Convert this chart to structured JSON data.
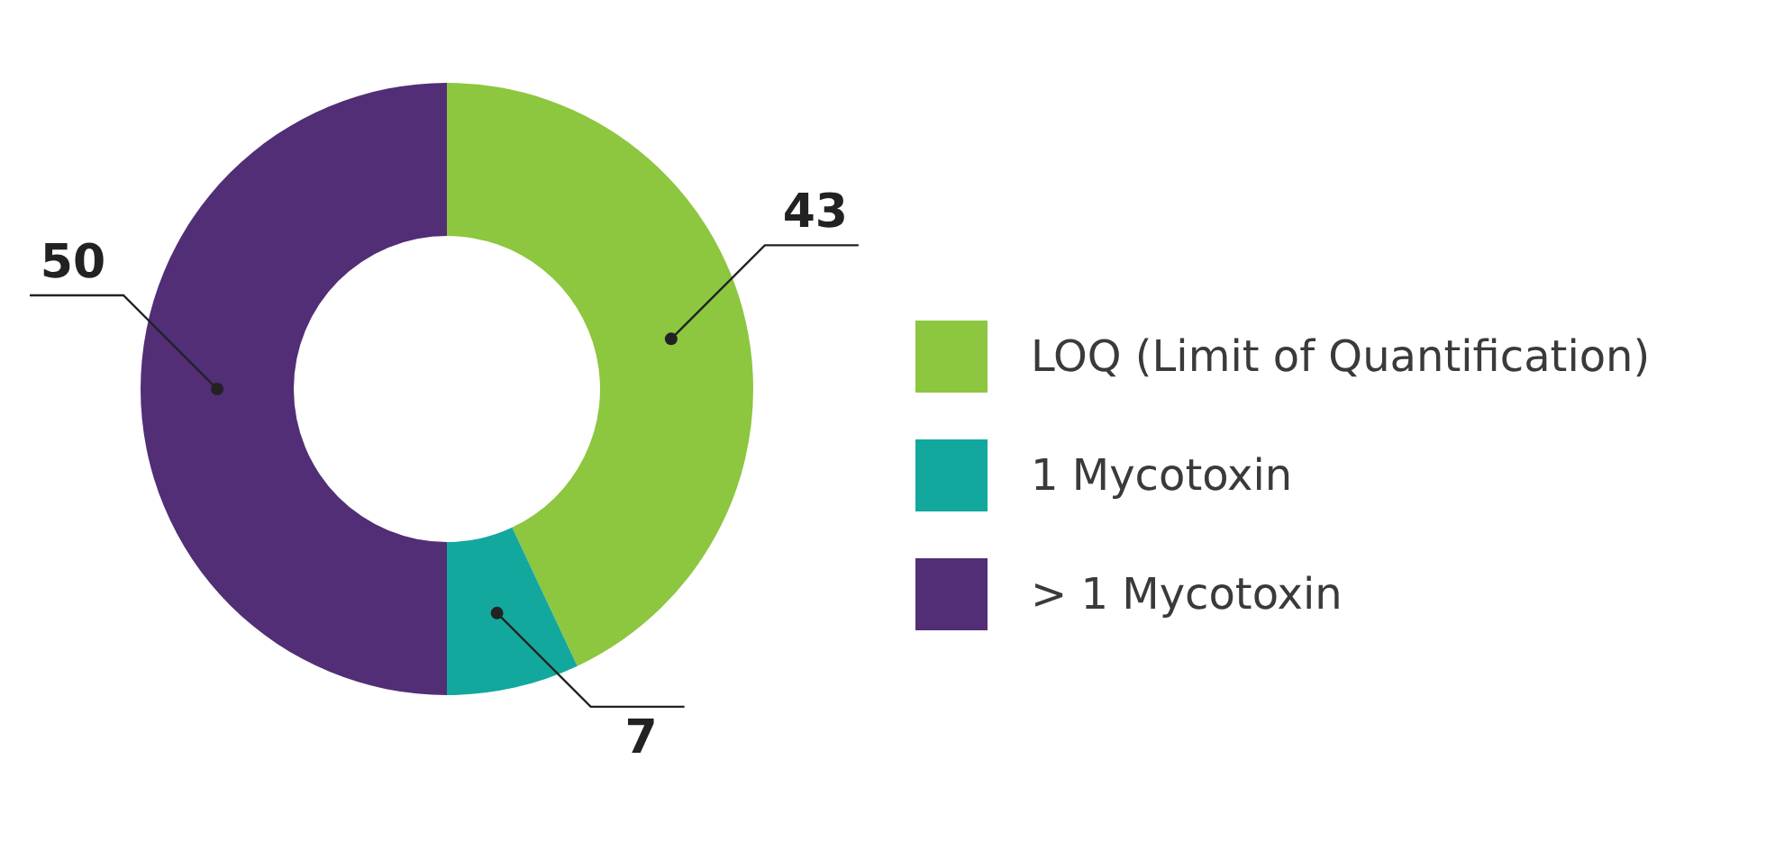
{
  "chart_data": {
    "type": "donut",
    "categories": [
      "LOQ (Limit of Quantification)",
      "1 Mycotoxin",
      "> 1 Mycotoxin"
    ],
    "values": [
      43,
      7,
      50
    ],
    "colors": [
      "#8dc63f",
      "#12a89d",
      "#522e76"
    ],
    "data_labels": true,
    "legend": "right"
  }
}
